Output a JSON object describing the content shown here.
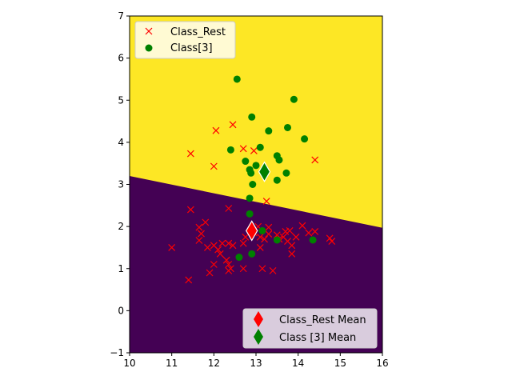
{
  "chart_data": {
    "type": "scatter",
    "xlim": [
      10,
      16
    ],
    "ylim": [
      -1,
      7
    ],
    "xticks": [
      10,
      11,
      12,
      13,
      14,
      15,
      16
    ],
    "yticks": [
      -1,
      0,
      1,
      2,
      3,
      4,
      5,
      6,
      7
    ],
    "decision_boundary": {
      "from": [
        10,
        3.2
      ],
      "to": [
        16,
        1.97
      ],
      "upper_region_color": "#fde725",
      "lower_region_color": "#440154"
    },
    "series": [
      {
        "name": "Class_Rest",
        "marker": "x",
        "color": "#ff0000",
        "points": [
          [
            11.45,
            3.73
          ],
          [
            12.05,
            4.28
          ],
          [
            12.45,
            4.42
          ],
          [
            12.0,
            3.43
          ],
          [
            12.7,
            3.85
          ],
          [
            12.95,
            3.8
          ],
          [
            14.4,
            3.58
          ],
          [
            13.25,
            2.6
          ],
          [
            11.45,
            2.4
          ],
          [
            12.35,
            2.43
          ],
          [
            11.8,
            2.1
          ],
          [
            11.65,
            1.98
          ],
          [
            11.7,
            1.83
          ],
          [
            11.65,
            1.67
          ],
          [
            11.85,
            1.5
          ],
          [
            11.0,
            1.5
          ],
          [
            12.0,
            1.55
          ],
          [
            12.1,
            1.45
          ],
          [
            12.2,
            1.6
          ],
          [
            12.35,
            1.6
          ],
          [
            12.15,
            1.35
          ],
          [
            12.3,
            1.2
          ],
          [
            12.35,
            1.1
          ],
          [
            12.4,
            1.0
          ],
          [
            12.35,
            0.95
          ],
          [
            12.0,
            1.1
          ],
          [
            11.9,
            0.9
          ],
          [
            11.4,
            0.73
          ],
          [
            12.7,
            1.0
          ],
          [
            13.15,
            1.0
          ],
          [
            13.4,
            0.95
          ],
          [
            12.45,
            1.55
          ],
          [
            12.7,
            1.6
          ],
          [
            12.75,
            1.75
          ],
          [
            12.95,
            1.85
          ],
          [
            13.05,
            2.0
          ],
          [
            13.1,
            1.75
          ],
          [
            13.2,
            1.7
          ],
          [
            13.3,
            1.82
          ],
          [
            13.3,
            1.98
          ],
          [
            13.5,
            1.8
          ],
          [
            13.65,
            1.75
          ],
          [
            13.7,
            1.88
          ],
          [
            13.8,
            1.9
          ],
          [
            13.75,
            1.65
          ],
          [
            13.85,
            1.55
          ],
          [
            13.85,
            1.35
          ],
          [
            13.95,
            1.75
          ],
          [
            14.1,
            2.02
          ],
          [
            14.25,
            1.85
          ],
          [
            14.4,
            1.88
          ],
          [
            14.75,
            1.72
          ],
          [
            14.8,
            1.65
          ],
          [
            13.1,
            1.5
          ],
          [
            13.55,
            1.7
          ]
        ]
      },
      {
        "name": "Class[3]",
        "marker": "o",
        "color": "#008000",
        "points": [
          [
            12.55,
            5.5
          ],
          [
            13.9,
            5.02
          ],
          [
            12.9,
            4.6
          ],
          [
            13.75,
            4.35
          ],
          [
            13.3,
            4.27
          ],
          [
            14.15,
            4.08
          ],
          [
            13.1,
            3.88
          ],
          [
            12.4,
            3.82
          ],
          [
            13.5,
            3.68
          ],
          [
            13.55,
            3.58
          ],
          [
            12.75,
            3.55
          ],
          [
            13.0,
            3.45
          ],
          [
            12.85,
            3.35
          ],
          [
            12.88,
            3.27
          ],
          [
            13.72,
            3.27
          ],
          [
            13.5,
            3.1
          ],
          [
            12.92,
            3.0
          ],
          [
            12.85,
            2.67
          ],
          [
            12.85,
            2.3
          ],
          [
            13.15,
            1.9
          ],
          [
            13.5,
            1.68
          ],
          [
            14.35,
            1.68
          ],
          [
            12.6,
            1.27
          ],
          [
            12.9,
            1.35
          ]
        ]
      }
    ],
    "means": [
      {
        "name": "Class_Rest Mean",
        "x": 12.9,
        "y": 1.9,
        "color": "#ff0000"
      },
      {
        "name": "Class [3] Mean",
        "x": 13.2,
        "y": 3.3,
        "color": "#008000"
      }
    ],
    "legend_top": {
      "placement": "top-left",
      "entries": [
        "Class_Rest",
        "Class[3]"
      ]
    },
    "legend_bottom": {
      "placement": "bottom-right",
      "entries": [
        "Class_Rest Mean",
        "Class [3] Mean"
      ]
    }
  }
}
